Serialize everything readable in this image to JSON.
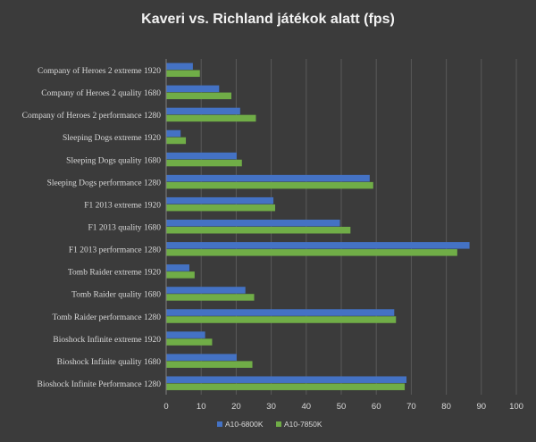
{
  "chart_data": {
    "type": "bar",
    "orientation": "horizontal",
    "title": "Kaveri vs. Richland játékok alatt (fps)",
    "categories": [
      "Company of Heroes 2 extreme 1920",
      "Company of Heroes 2 quality 1680",
      "Company of Heroes 2 performance 1280",
      "Sleeping Dogs extreme 1920",
      "Sleeping Dogs quality 1680",
      "Sleeping Dogs performance 1280",
      "F1 2013 extreme 1920",
      "F1 2013 quality 1680",
      "F1 2013 performance 1280",
      "Tomb Raider extreme 1920",
      "Tomb Raider quality 1680",
      "Tomb Raider performance 1280",
      "Bioshock Infinite extreme 1920",
      "Bioshock Infinite quality 1680",
      "Bioshock Infinite Performance 1280"
    ],
    "series": [
      {
        "name": "A10-6800K",
        "color": "#4472c4",
        "values": [
          7.5,
          15,
          21,
          4,
          20,
          58,
          30.5,
          49.5,
          86.5,
          6.5,
          22.5,
          65,
          11,
          20,
          68.5
        ]
      },
      {
        "name": "A10-7850K",
        "color": "#70ad47",
        "values": [
          9.5,
          18.5,
          25.5,
          5.5,
          21.5,
          59,
          31,
          52.5,
          83,
          8,
          25,
          65.5,
          13,
          24.5,
          68
        ]
      }
    ],
    "xlim": [
      0,
      100
    ],
    "xticks": [
      0,
      10,
      20,
      30,
      40,
      50,
      60,
      70,
      80,
      90,
      100
    ],
    "grid": true,
    "legend_position": "bottom"
  }
}
